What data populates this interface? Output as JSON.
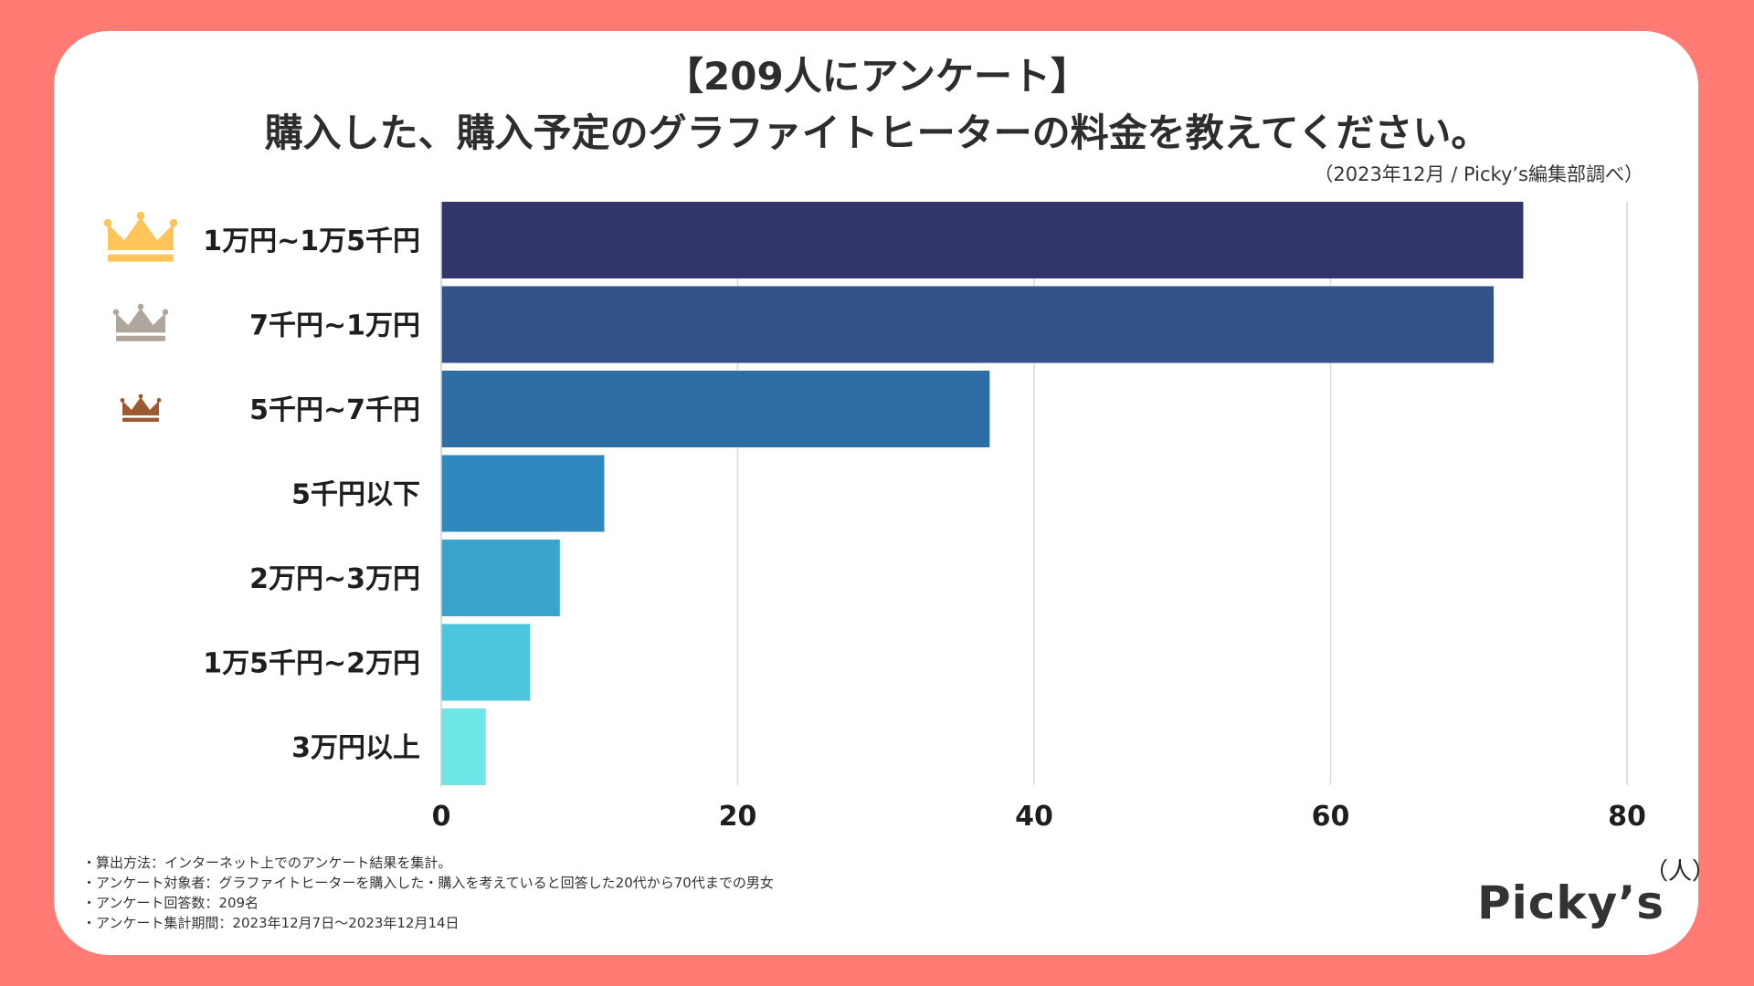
{
  "header": {
    "title_line1": "【209人にアンケート】",
    "title_line2": "購入した、購入予定のグラファイトヒーターの料金を教えてください。",
    "source": "（2023年12月 / Picky’s編集部調べ）"
  },
  "chart_data": {
    "type": "bar",
    "orientation": "horizontal",
    "title": "購入した、購入予定のグラファイトヒーターの料金を教えてください。",
    "categories": [
      "1万円~1万5千円",
      "7千円~1万円",
      "5千円~7千円",
      "5千円以下",
      "2万円~3万円",
      "1万5千円~2万円",
      "3万円以上"
    ],
    "values": [
      73,
      71,
      37,
      11,
      8,
      6,
      3
    ],
    "bar_colors": [
      "#313569",
      "#325288",
      "#2E6DA4",
      "#2F89BF",
      "#3AA4CD",
      "#4CC6DC",
      "#6EE6E8"
    ],
    "xlim": [
      0,
      80
    ],
    "xticks": [
      0,
      20,
      40,
      60,
      80
    ],
    "xlabel": "（人）",
    "grid": true,
    "rank_icons": [
      "crown-gold",
      "crown-silver",
      "crown-bronze"
    ],
    "rank_colors": [
      "#FFC45A",
      "#AFA79E",
      "#9D5A30"
    ]
  },
  "notes": [
    "・算出方法：インターネット上でのアンケート結果を集計。",
    "・アンケート対象者：グラファイトヒーターを購入した・購入を考えていると回答した20代から70代までの男女",
    "・アンケート回答数：209名",
    "・アンケート集計期間：2023年12月7日〜2023年12月14日"
  ],
  "brand": {
    "logo_text": "Picky’s"
  }
}
